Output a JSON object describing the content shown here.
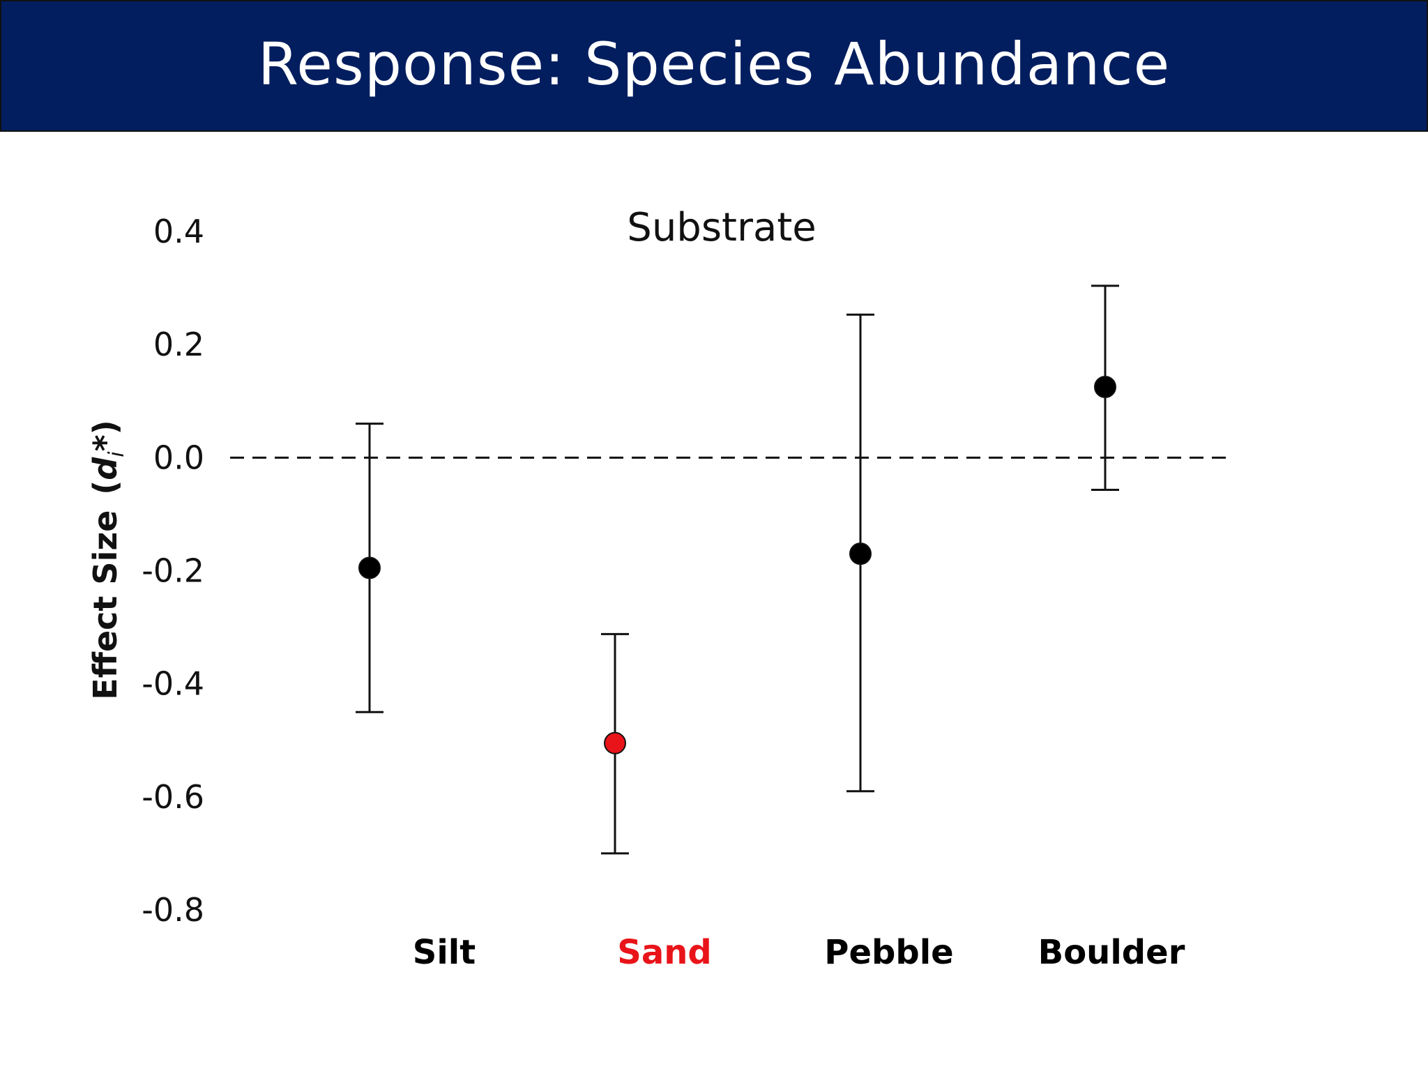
{
  "slide": {
    "title": "Response: Species Abundance",
    "title_bar_color": "#031E5F",
    "title_text_color": "#FFFFFF"
  },
  "chart_data": {
    "type": "scatter",
    "title": "Substrate",
    "ylabel_main": "Effect Size",
    "ylabel_symbol": "d",
    "ylabel_subscript": "i",
    "ylabel_suffix": "*",
    "ylim": [
      -0.8,
      0.4
    ],
    "yticks": [
      "0.4",
      "0.2",
      "0.0",
      "-0.2",
      "-0.4",
      "-0.6",
      "-0.8"
    ],
    "ytick_values": [
      0.4,
      0.2,
      0.0,
      -0.2,
      -0.4,
      -0.6,
      -0.8
    ],
    "reference_line": 0.0,
    "reference_line_style": "dashed",
    "grid": false,
    "legend": "none",
    "categories": [
      "Silt",
      "Sand",
      "Pebble",
      "Boulder"
    ],
    "values": [
      -0.195,
      -0.505,
      -0.17,
      0.125
    ],
    "ci_lower": [
      -0.45,
      -0.7,
      -0.59,
      -0.057
    ],
    "ci_upper": [
      0.06,
      -0.312,
      0.253,
      0.304
    ],
    "point_colors": [
      "#000000",
      "#E8141A",
      "#000000",
      "#000000"
    ],
    "label_colors": [
      "#000000",
      "#E8141A",
      "#000000",
      "#000000"
    ]
  }
}
